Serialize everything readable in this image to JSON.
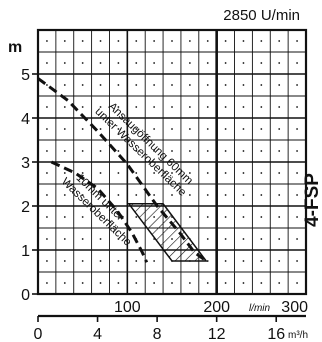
{
  "chart_data": {
    "type": "line",
    "speed_label": "2850 U/min",
    "model_label": "4-FSP",
    "y_unit": "m",
    "y_ticks": [
      0,
      1,
      2,
      3,
      4,
      5
    ],
    "ylim": [
      0,
      6
    ],
    "x_top_ticks": [
      "100",
      "200",
      "300"
    ],
    "x_top_tick_values": [
      100,
      200,
      300
    ],
    "x_top_unit": "l/min",
    "x_bottom_ticks": [
      "0",
      "4",
      "8",
      "12",
      "16"
    ],
    "x_bottom_tick_values": [
      0,
      4,
      8,
      12,
      16
    ],
    "x_bottom_unit": "m³/h",
    "xlim": [
      0,
      18
    ],
    "grid": true,
    "series": [
      {
        "name": "Ansaugöffnung 60mm unter Wasseroberfläche",
        "x": [
          0,
          2,
          4,
          6,
          8,
          9.5,
          10.5,
          11.3
        ],
        "y": [
          4.9,
          4.4,
          3.7,
          2.95,
          2.0,
          1.4,
          0.95,
          0.75
        ]
      },
      {
        "name": "10mm unter Wasseroberfläche",
        "x": [
          0.9,
          2.5,
          4.0,
          5.3,
          6.3,
          7.0,
          7.3
        ],
        "y": [
          3.0,
          2.75,
          2.4,
          1.9,
          1.4,
          0.95,
          0.72
        ]
      }
    ],
    "shaded_region": {
      "x": [
        6.1,
        8.4,
        11.3,
        9.0
      ],
      "y": [
        2.05,
        2.05,
        0.75,
        0.75
      ]
    }
  }
}
